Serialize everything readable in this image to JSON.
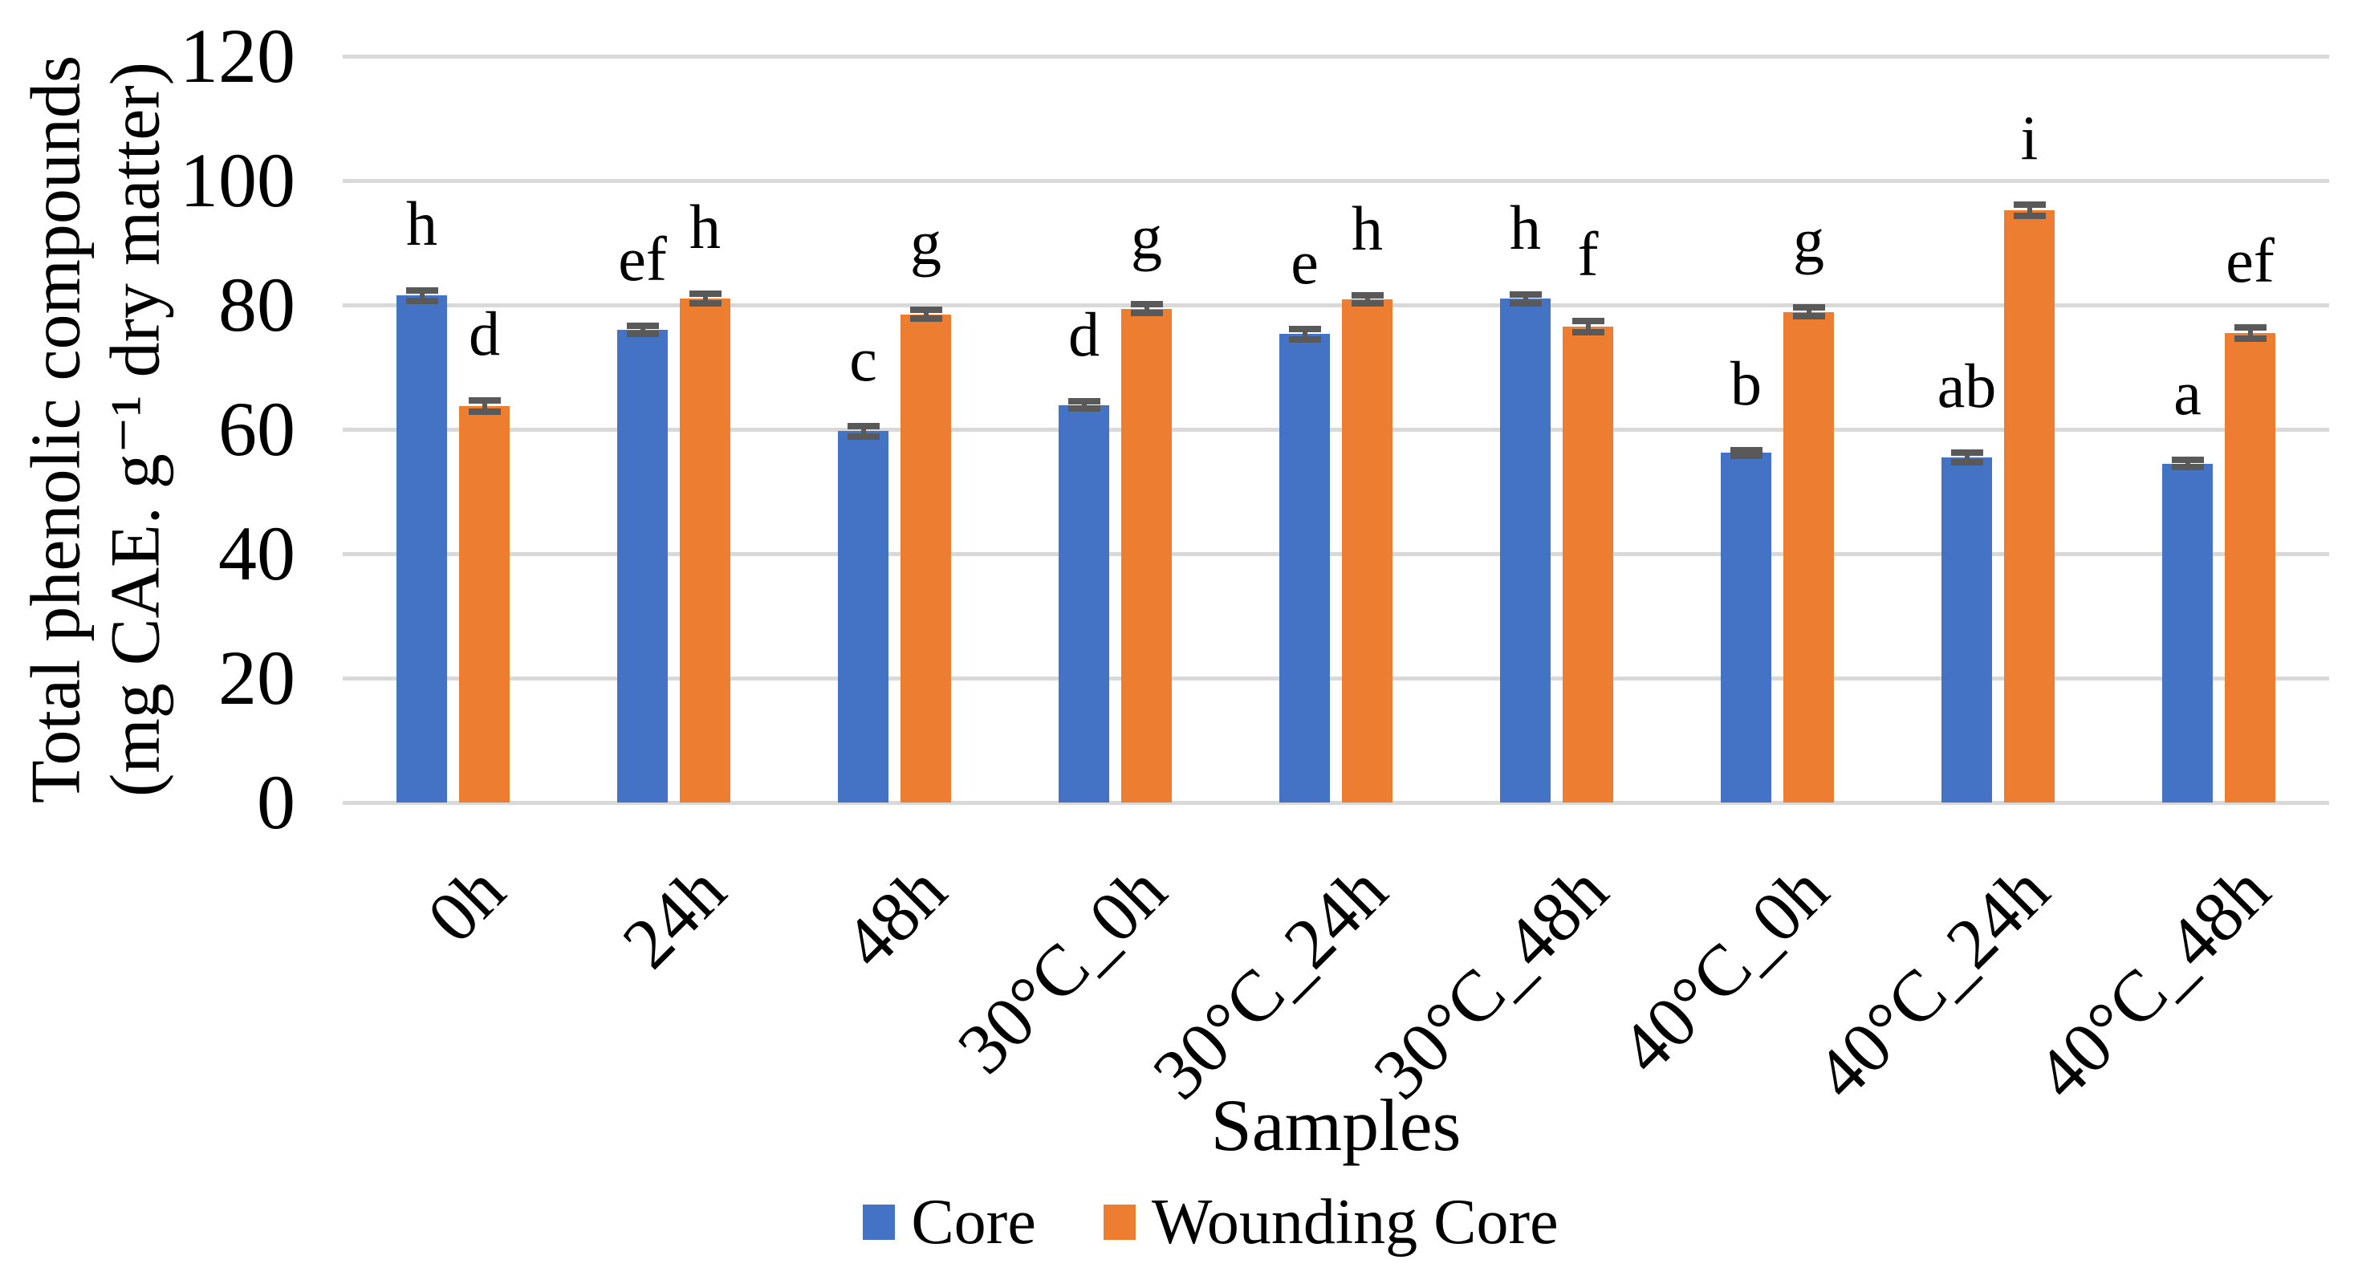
{
  "chart_data": {
    "type": "bar",
    "title": "",
    "xlabel": "Samples",
    "ylabel_line1": "Total phenolic compounds",
    "ylabel_line2": "(mg CAE. g⁻¹ dry matter)",
    "categories": [
      "0h",
      "24h",
      "48h",
      "30°C_0h",
      "30°C_24h",
      "30°C_48h",
      "40°C_0h",
      "40°C_24h",
      "40°C_48h"
    ],
    "series": [
      {
        "name": "Core",
        "color": "#4472C4",
        "values": [
          81.5,
          76.0,
          59.7,
          63.9,
          75.3,
          81.0,
          56.2,
          55.5,
          54.5
        ],
        "errors": [
          0.8,
          0.7,
          0.8,
          0.6,
          0.8,
          0.7,
          0.5,
          0.8,
          0.6
        ],
        "letters": [
          "h",
          "ef",
          "c",
          "d",
          "e",
          "h",
          "b",
          "ab",
          "a"
        ]
      },
      {
        "name": "Wounding Core",
        "color": "#ED7D31",
        "values": [
          63.8,
          81.0,
          78.5,
          79.4,
          80.9,
          76.5,
          78.9,
          95.2,
          75.5
        ],
        "errors": [
          0.9,
          0.8,
          0.7,
          0.7,
          0.7,
          0.9,
          0.7,
          0.9,
          0.9
        ],
        "letters": [
          "d",
          "h",
          "g",
          "g",
          "h",
          "f",
          "g",
          "i",
          "ef"
        ]
      }
    ],
    "ylim": [
      0,
      120
    ],
    "yticks": [
      0,
      20,
      40,
      60,
      80,
      100,
      120
    ],
    "grid": true,
    "legend_position": "bottom",
    "gridline_color": "#D9D9D9",
    "error_bar_color": "#595959",
    "text_color": "#000000"
  }
}
